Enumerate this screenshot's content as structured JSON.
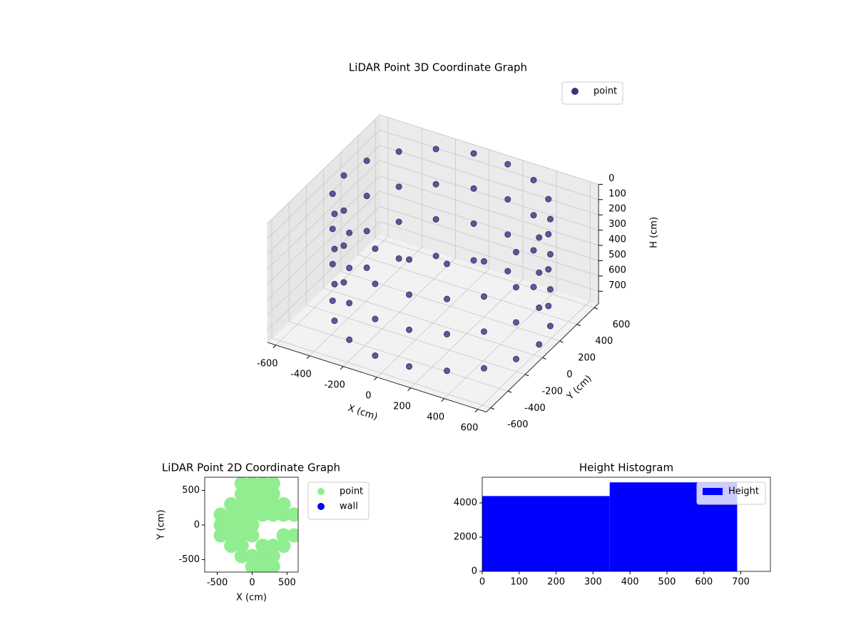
{
  "chart_data": [
    {
      "type": "scatter3d",
      "title": "LiDAR Point 3D Coordinate Graph",
      "xlabel": "X (cm)",
      "ylabel": "Y (cm)",
      "zlabel": "H (cm)",
      "xlim": [
        -650,
        650
      ],
      "ylim": [
        -650,
        650
      ],
      "zlim": [
        780,
        0
      ],
      "xticks": [
        -600,
        -400,
        -200,
        0,
        200,
        400,
        600
      ],
      "yticks": [
        -600,
        -400,
        -200,
        0,
        200,
        400,
        600
      ],
      "zticks": [
        0,
        100,
        200,
        300,
        400,
        500,
        600,
        700
      ],
      "grid": true,
      "legend": "upper right",
      "series": [
        {
          "name": "point",
          "color": "#472d7b",
          "x": [
            630,
            595,
            494,
            340,
            151,
            -51,
            -240,
            -394,
            -495,
            -530,
            -495,
            -394,
            -240,
            -51,
            151,
            340,
            494,
            595,
            630,
            595,
            494,
            340,
            151,
            -51,
            -240,
            -394,
            -495,
            -530,
            -495,
            -394,
            -240,
            -51,
            151,
            340,
            494,
            595,
            630,
            595,
            494,
            340,
            151,
            -51,
            -240,
            -394,
            -495,
            -530,
            -495,
            -394,
            -240,
            -51,
            151,
            340,
            494,
            595,
            630,
            595,
            494,
            340,
            151,
            -51,
            -240,
            -394,
            -495,
            -530,
            -495,
            -394,
            -240,
            -51,
            151,
            340,
            494,
            595
          ],
          "y": [
            0,
            198,
            373,
            502,
            571,
            571,
            502,
            373,
            198,
            0,
            -198,
            -373,
            -502,
            -571,
            -571,
            -502,
            -373,
            -198,
            0,
            198,
            373,
            502,
            571,
            571,
            502,
            373,
            198,
            0,
            -198,
            -373,
            -502,
            -571,
            -571,
            -502,
            -373,
            -198,
            0,
            198,
            373,
            502,
            571,
            571,
            502,
            373,
            198,
            0,
            -198,
            -373,
            -502,
            -571,
            -571,
            -502,
            -373,
            -198,
            0,
            198,
            373,
            502,
            571,
            571,
            502,
            373,
            198,
            0,
            -198,
            -373,
            -502,
            -571,
            -571,
            -502,
            -373,
            -198
          ],
          "h": [
            700,
            700,
            700,
            700,
            700,
            700,
            700,
            700,
            700,
            700,
            700,
            700,
            700,
            700,
            700,
            700,
            700,
            700,
            460,
            460,
            460,
            460,
            460,
            460,
            460,
            460,
            460,
            460,
            460,
            460,
            460,
            460,
            460,
            460,
            460,
            460,
            230,
            230,
            230,
            230,
            230,
            230,
            230,
            230,
            230,
            230,
            230,
            230,
            230,
            230,
            230,
            230,
            230,
            230,
            0,
            0,
            0,
            0,
            0,
            0,
            0,
            0,
            0,
            0,
            0,
            0,
            0,
            0,
            0,
            0,
            0,
            0
          ]
        }
      ]
    },
    {
      "type": "scatter",
      "title": "LiDAR Point 2D Coordinate Graph",
      "xlabel": "X (cm)",
      "ylabel": "Y (cm)",
      "xlim": [
        -680,
        660
      ],
      "ylim": [
        -680,
        690
      ],
      "xticks": [
        -500,
        0,
        500
      ],
      "yticks": [
        -500,
        0,
        500
      ],
      "legend": "outside right",
      "series": [
        {
          "name": "point",
          "color": "#90ee90",
          "x": [
            -450,
            -450,
            -450,
            -300,
            -300,
            -300,
            -300,
            -300,
            -150,
            -150,
            -150,
            -150,
            -150,
            -150,
            -150,
            -150,
            0,
            0,
            0,
            0,
            0,
            0,
            0,
            0,
            150,
            150,
            150,
            150,
            150,
            150,
            150,
            300,
            300,
            300,
            300,
            300,
            300,
            300,
            450,
            450,
            450,
            450,
            600,
            600
          ],
          "y": [
            -150,
            0,
            150,
            -300,
            -150,
            0,
            150,
            300,
            -450,
            -300,
            -150,
            0,
            150,
            300,
            450,
            600,
            -600,
            -450,
            -150,
            0,
            150,
            300,
            450,
            600,
            -600,
            -450,
            -300,
            150,
            300,
            450,
            600,
            -600,
            -450,
            -300,
            150,
            300,
            450,
            600,
            -300,
            -150,
            150,
            300,
            -150,
            150
          ]
        },
        {
          "name": "wall",
          "color": "#0000ff",
          "x": [],
          "y": []
        }
      ]
    },
    {
      "type": "histogram",
      "title": "Height Histogram",
      "bins": [
        0,
        345,
        690
      ],
      "xlim": [
        0,
        780
      ],
      "ylim": [
        0,
        5500
      ],
      "xticks": [
        0,
        100,
        200,
        300,
        400,
        500,
        600,
        700
      ],
      "yticks": [
        0,
        2000,
        4000
      ],
      "legend": "upper right",
      "series": [
        {
          "name": "Height",
          "color": "#0000ff",
          "values": [
            4400,
            5200
          ]
        }
      ]
    }
  ]
}
